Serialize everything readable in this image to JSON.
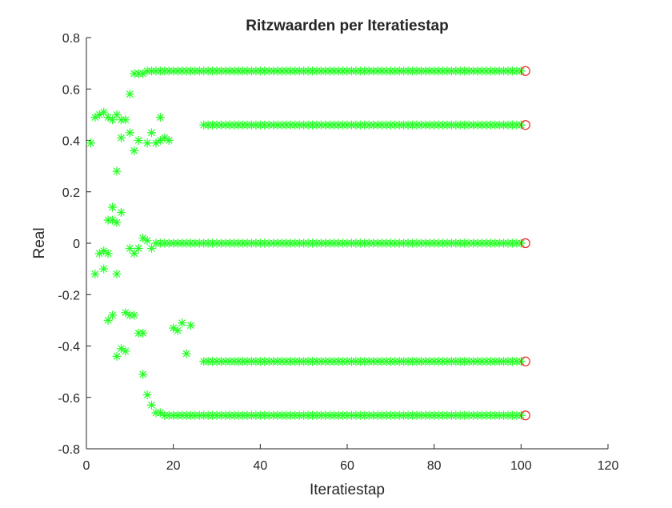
{
  "chart_data": {
    "type": "scatter",
    "title": "Ritzwaarden per Iteratiestap",
    "xlabel": "Iteratiestap",
    "ylabel": "Real",
    "xlim": [
      0,
      120
    ],
    "ylim": [
      -0.8,
      0.8
    ],
    "xticks": [
      "0",
      "20",
      "40",
      "60",
      "80",
      "100",
      "120"
    ],
    "yticks": [
      "-0.8",
      "-0.6",
      "-0.4",
      "-0.2",
      "0",
      "0.2",
      "0.4",
      "0.6",
      "0.8"
    ],
    "grid": false,
    "colors": {
      "ritz": "#22ff22",
      "eigen": "#ee2222"
    },
    "series": [
      {
        "marker": "asterisk",
        "color": "#22ff22",
        "points": [
          [
            1,
            0.39
          ],
          [
            2,
            0.49
          ],
          [
            2,
            -0.12
          ],
          [
            3,
            0.5
          ],
          [
            3,
            -0.04
          ],
          [
            4,
            0.51
          ],
          [
            4,
            -0.03
          ],
          [
            4,
            -0.1
          ],
          [
            5,
            0.49
          ],
          [
            5,
            0.09
          ],
          [
            5,
            -0.04
          ],
          [
            5,
            -0.3
          ],
          [
            6,
            0.48
          ],
          [
            6,
            0.14
          ],
          [
            6,
            0.09
          ],
          [
            6,
            -0.28
          ],
          [
            7,
            0.5
          ],
          [
            7,
            0.28
          ],
          [
            7,
            0.08
          ],
          [
            7,
            -0.12
          ],
          [
            7,
            -0.44
          ],
          [
            8,
            0.48
          ],
          [
            8,
            0.41
          ],
          [
            8,
            0.12
          ],
          [
            8,
            -0.41
          ],
          [
            9,
            0.48
          ],
          [
            9,
            -0.27
          ],
          [
            9,
            -0.42
          ],
          [
            10,
            0.58
          ],
          [
            10,
            0.43
          ],
          [
            10,
            -0.02
          ],
          [
            10,
            -0.28
          ],
          [
            11,
            0.66
          ],
          [
            11,
            0.36
          ],
          [
            11,
            -0.04
          ],
          [
            11,
            -0.28
          ],
          [
            12,
            0.66
          ],
          [
            12,
            0.4
          ],
          [
            12,
            -0.02
          ],
          [
            12,
            -0.35
          ],
          [
            13,
            0.66
          ],
          [
            13,
            0.02
          ],
          [
            13,
            -0.35
          ],
          [
            13,
            -0.51
          ],
          [
            14,
            0.67
          ],
          [
            14,
            0.39
          ],
          [
            14,
            0.01
          ],
          [
            14,
            -0.59
          ],
          [
            15,
            0.67
          ],
          [
            15,
            0.43
          ],
          [
            15,
            -0.02
          ],
          [
            15,
            -0.63
          ],
          [
            16,
            0.67
          ],
          [
            16,
            0.39
          ],
          [
            16,
            0.0
          ],
          [
            16,
            -0.66
          ],
          [
            17,
            0.67
          ],
          [
            17,
            0.49
          ],
          [
            17,
            0.4
          ],
          [
            17,
            0.0
          ],
          [
            17,
            -0.66
          ],
          [
            18,
            0.67
          ],
          [
            18,
            0.41
          ],
          [
            18,
            0.0
          ],
          [
            18,
            -0.67
          ],
          [
            19,
            0.67
          ],
          [
            19,
            0.4
          ],
          [
            19,
            0.0
          ],
          [
            19,
            -0.67
          ],
          [
            20,
            0.67
          ],
          [
            20,
            0.0
          ],
          [
            20,
            -0.33
          ],
          [
            20,
            -0.67
          ],
          [
            21,
            0.67
          ],
          [
            21,
            0.0
          ],
          [
            21,
            -0.34
          ],
          [
            21,
            -0.67
          ],
          [
            22,
            0.67
          ],
          [
            22,
            0.0
          ],
          [
            22,
            -0.31
          ],
          [
            22,
            -0.67
          ],
          [
            23,
            0.67
          ],
          [
            23,
            0.0
          ],
          [
            23,
            -0.43
          ],
          [
            23,
            -0.67
          ],
          [
            24,
            0.67
          ],
          [
            24,
            0.0
          ],
          [
            24,
            -0.32
          ],
          [
            24,
            -0.67
          ],
          [
            25,
            0.67
          ],
          [
            25,
            0.0
          ],
          [
            25,
            -0.67
          ],
          [
            26,
            0.67
          ],
          [
            26,
            0.0
          ],
          [
            26,
            -0.67
          ]
        ],
        "converged": {
          "from": 27,
          "to": 100,
          "values": [
            0.67,
            0.46,
            0.0,
            -0.46,
            -0.67
          ]
        }
      },
      {
        "marker": "circle",
        "color": "#ee2222",
        "points": [
          [
            101,
            0.67
          ],
          [
            101,
            0.46
          ],
          [
            101,
            0.0
          ],
          [
            101,
            -0.46
          ],
          [
            101,
            -0.67
          ]
        ]
      }
    ]
  }
}
